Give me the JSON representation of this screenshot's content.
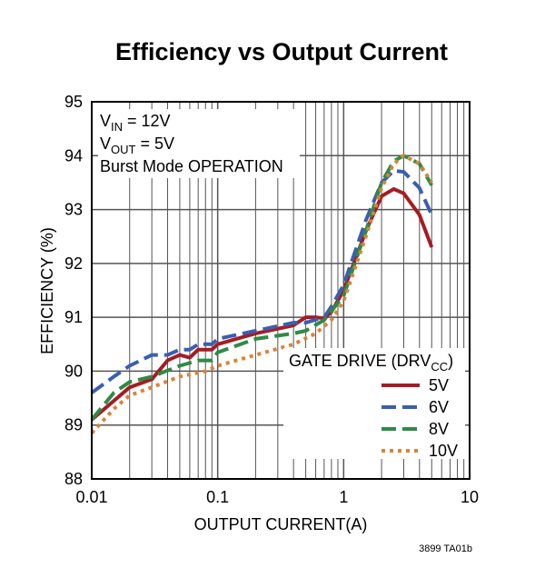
{
  "chart_data": {
    "type": "line",
    "title": "Efficiency vs Output Current",
    "xlabel": "OUTPUT CURRENT(A)",
    "ylabel": "EFFICIENCY (%)",
    "xscale": "log",
    "xlim": [
      0.01,
      10
    ],
    "ylim": [
      88,
      95
    ],
    "xticks": [
      "0.01",
      "0.1",
      "1",
      "10"
    ],
    "xtick_values": [
      0.01,
      0.1,
      1,
      10
    ],
    "yticks": [
      "88",
      "89",
      "90",
      "91",
      "92",
      "93",
      "94",
      "95"
    ],
    "grid": true,
    "annotations": [
      {
        "main": "V",
        "sub": "IN",
        "rest": " = 12V"
      },
      {
        "main": "V",
        "sub": "OUT",
        "rest": " = 5V"
      },
      {
        "main": "Burst Mode OPERATION",
        "sub": "",
        "rest": ""
      }
    ],
    "legend": {
      "title_main": "GATE DRIVE (DRV",
      "title_sub": "CC",
      "title_rest": ")",
      "placement": "bottom-right"
    },
    "footnote": "3899 TA01b",
    "series": [
      {
        "name": "5V",
        "color": "#a51c24",
        "style": "solid",
        "x": [
          0.01,
          0.015,
          0.02,
          0.03,
          0.04,
          0.05,
          0.06,
          0.07,
          0.09,
          0.1,
          0.2,
          0.4,
          0.5,
          0.6,
          0.7,
          0.8,
          1,
          1.5,
          2,
          2.5,
          3,
          4,
          5
        ],
        "y": [
          89.1,
          89.45,
          89.7,
          89.85,
          90.2,
          90.3,
          90.25,
          90.4,
          90.4,
          90.5,
          90.7,
          90.85,
          91.0,
          91.0,
          90.98,
          91.1,
          91.5,
          92.6,
          93.25,
          93.38,
          93.3,
          92.9,
          92.3
        ]
      },
      {
        "name": "6V",
        "color": "#3a5fb0",
        "style": "dash",
        "x": [
          0.01,
          0.015,
          0.02,
          0.03,
          0.04,
          0.05,
          0.06,
          0.07,
          0.09,
          0.1,
          0.2,
          0.4,
          0.5,
          0.7,
          0.8,
          1,
          1.5,
          2,
          2.5,
          3,
          4,
          5
        ],
        "y": [
          89.6,
          89.9,
          90.1,
          90.3,
          90.3,
          90.4,
          90.4,
          90.5,
          90.5,
          90.6,
          90.75,
          90.9,
          90.9,
          91.0,
          91.2,
          91.6,
          92.8,
          93.5,
          93.72,
          93.7,
          93.4,
          92.9
        ]
      },
      {
        "name": "8V",
        "color": "#2e8b45",
        "style": "dash",
        "x": [
          0.01,
          0.015,
          0.02,
          0.03,
          0.05,
          0.07,
          0.09,
          0.1,
          0.2,
          0.4,
          0.5,
          0.7,
          1,
          1.5,
          2,
          2.5,
          3,
          4,
          5
        ],
        "y": [
          89.1,
          89.6,
          89.8,
          89.9,
          90.1,
          90.2,
          90.2,
          90.35,
          90.6,
          90.7,
          90.75,
          90.95,
          91.4,
          92.6,
          93.5,
          93.9,
          94.0,
          93.85,
          93.45
        ]
      },
      {
        "name": "10V",
        "color": "#d8843a",
        "style": "dot",
        "x": [
          0.01,
          0.015,
          0.02,
          0.03,
          0.05,
          0.08,
          0.1,
          0.2,
          0.4,
          0.6,
          0.8,
          1,
          1.5,
          2,
          2.5,
          3,
          4,
          5
        ],
        "y": [
          88.85,
          89.3,
          89.55,
          89.7,
          89.9,
          90.0,
          90.1,
          90.3,
          90.5,
          90.7,
          90.95,
          91.3,
          92.5,
          93.4,
          93.85,
          94.0,
          93.85,
          93.5
        ]
      }
    ]
  }
}
